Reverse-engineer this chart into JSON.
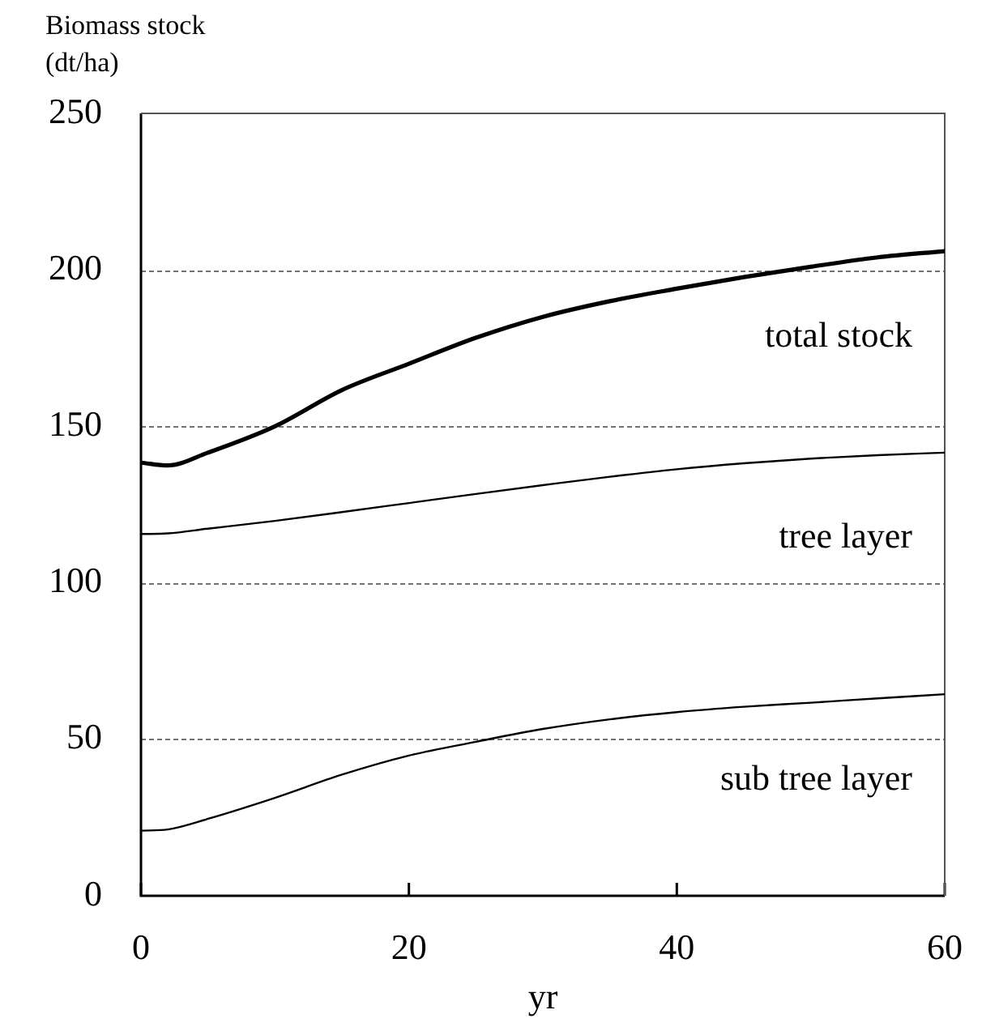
{
  "chart_data": {
    "type": "line",
    "ylabel": "Biomass stock (dt/ha)",
    "xlabel": "yr",
    "x": [
      0,
      2,
      5,
      10,
      15,
      20,
      25,
      30,
      35,
      40,
      45,
      50,
      55,
      60
    ],
    "series": [
      {
        "name": "total stock",
        "color": "#000000",
        "values": [
          138.4,
          137.5,
          141.6,
          150,
          161.6,
          170,
          178.3,
          185,
          190,
          194,
          197.7,
          201,
          204,
          206
        ]
      },
      {
        "name": "tree layer",
        "color": "#000000",
        "values": [
          115.6,
          115.8,
          117.3,
          119.8,
          122.6,
          125.5,
          128.4,
          131.2,
          133.9,
          136.3,
          138.2,
          139.7,
          140.8,
          141.6
        ]
      },
      {
        "name": "sub tree layer",
        "color": "#000000",
        "values": [
          20.8,
          21.2,
          24.6,
          31.3,
          38.7,
          44.8,
          49.2,
          53.3,
          56.4,
          58.7,
          60.4,
          61.7,
          63.1,
          64.4
        ]
      }
    ],
    "xlim": [
      0,
      60
    ],
    "xticks": [
      0,
      20,
      40,
      60
    ],
    "ylim": [
      0,
      250
    ],
    "yticks": [
      0,
      50,
      100,
      150,
      200,
      250
    ],
    "grid": "y",
    "legend": false,
    "marker": "none",
    "line_style": "solid"
  }
}
